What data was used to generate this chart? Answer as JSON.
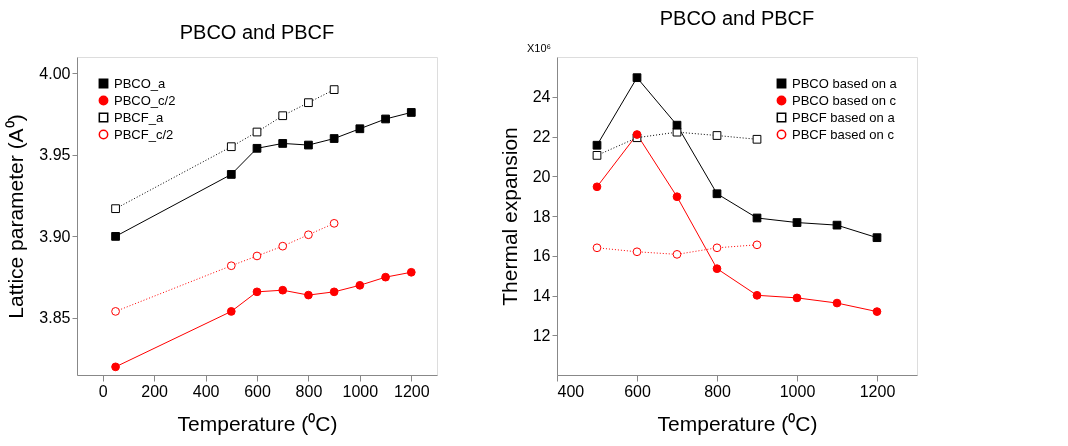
{
  "chart_data": [
    {
      "type": "line",
      "title": "PBCO and PBCF",
      "xlabel": "Temperature (⁰C)",
      "ylabel": "Lattice parameter (A⁰)",
      "xlim": [
        -100,
        1300
      ],
      "xticks": [
        0,
        200,
        400,
        600,
        800,
        1000,
        1200
      ],
      "ylim": [
        3.815,
        4.01
      ],
      "yticks": [
        {
          "value": 3.85,
          "label": "3.85"
        },
        {
          "value": 3.9,
          "label": "3.90"
        },
        {
          "value": 3.95,
          "label": "3.95"
        },
        {
          "value": 4.0,
          "label": "4.00"
        }
      ],
      "grid": false,
      "legend": "top left",
      "series": [
        {
          "name": "PBCO_a",
          "color": "#000000",
          "marker": "square",
          "line_style": "solid",
          "x": [
            50,
            500,
            600,
            700,
            800,
            900,
            1000,
            1100,
            1200
          ],
          "values": [
            3.9,
            3.938,
            3.954,
            3.957,
            3.956,
            3.96,
            3.966,
            3.972,
            3.976
          ]
        },
        {
          "name": "PBCO_c/2",
          "color": "#ff0000",
          "marker": "circle",
          "line_style": "solid",
          "x": [
            50,
            500,
            600,
            700,
            800,
            900,
            1000,
            1100,
            1200
          ],
          "values": [
            3.82,
            3.854,
            3.866,
            3.867,
            3.864,
            3.866,
            3.87,
            3.875,
            3.878
          ]
        },
        {
          "name": "PBCF_a",
          "color": "#000000",
          "marker": "square",
          "line_style": "dotted",
          "x": [
            50,
            500,
            600,
            700,
            800,
            900
          ],
          "values": [
            3.917,
            3.955,
            3.964,
            3.974,
            3.982,
            3.99
          ]
        },
        {
          "name": "PBCF_c/2",
          "color": "#ff0000",
          "marker": "circle",
          "line_style": "dotted",
          "x": [
            50,
            500,
            600,
            700,
            800,
            900
          ],
          "values": [
            3.854,
            3.882,
            3.888,
            3.894,
            3.901,
            3.908
          ]
        }
      ]
    },
    {
      "type": "line",
      "title": "PBCO and PBCF",
      "xlabel": "Temperature (⁰C)",
      "ylabel": "Thermal expansion",
      "annotations": [
        "X10⁶"
      ],
      "xlim": [
        400,
        1300
      ],
      "xticks": [
        400,
        600,
        800,
        1000,
        1200
      ],
      "ylim": [
        10,
        26
      ],
      "yticks": [
        12,
        14,
        16,
        18,
        20,
        22,
        24
      ],
      "grid": false,
      "legend": "top right",
      "series": [
        {
          "name": "PBCO based on a",
          "color": "#000000",
          "marker": "square",
          "line_style": "solid",
          "x": [
            500,
            600,
            700,
            800,
            900,
            1000,
            1100,
            1200
          ],
          "values": [
            21.56,
            24.96,
            22.57,
            19.12,
            17.9,
            17.67,
            17.54,
            16.91
          ]
        },
        {
          "name": "PBCO based on c",
          "color": "#ff0000",
          "marker": "circle",
          "line_style": "solid",
          "x": [
            500,
            600,
            700,
            800,
            900,
            1000,
            1100,
            1200
          ],
          "values": [
            19.47,
            22.1,
            18.97,
            15.35,
            14.01,
            13.88,
            13.62,
            13.19
          ]
        },
        {
          "name": "PBCF based on a",
          "color": "#000000",
          "marker": "square",
          "line_style": "dotted",
          "x": [
            500,
            600,
            700,
            800,
            900
          ],
          "values": [
            21.05,
            21.94,
            22.22,
            22.05,
            21.86
          ]
        },
        {
          "name": "PBCF based on c",
          "color": "#ff0000",
          "marker": "circle",
          "line_style": "dotted",
          "x": [
            500,
            600,
            700,
            800,
            900
          ],
          "values": [
            16.4,
            16.2,
            16.07,
            16.4,
            16.55
          ]
        }
      ]
    }
  ]
}
